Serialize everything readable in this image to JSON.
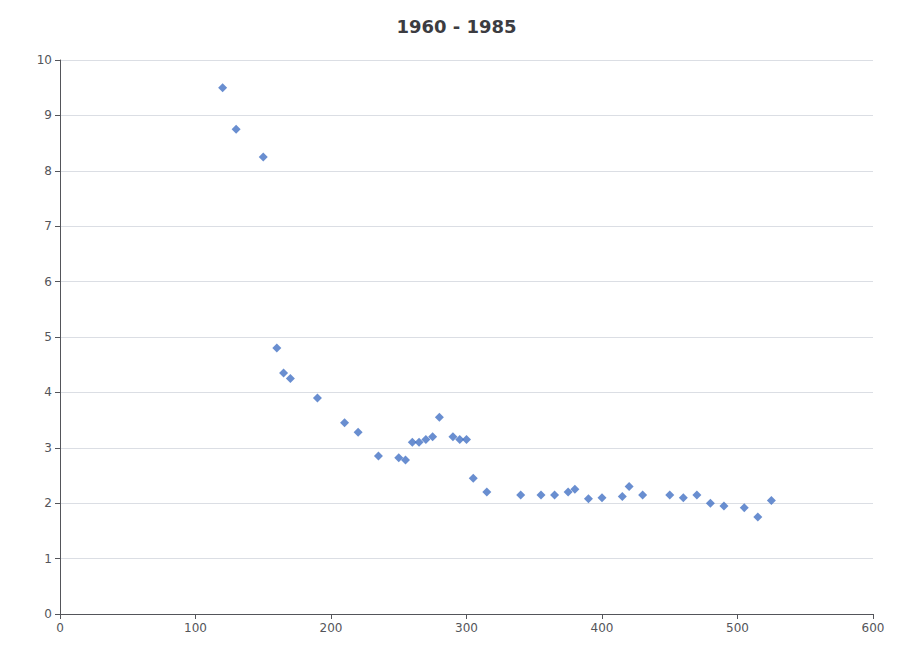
{
  "chart_data": {
    "type": "scatter",
    "title": "1960 - 1985",
    "x": [
      120,
      130,
      150,
      160,
      165,
      170,
      190,
      210,
      220,
      235,
      250,
      255,
      260,
      265,
      270,
      275,
      280,
      290,
      295,
      300,
      305,
      315,
      340,
      355,
      365,
      375,
      380,
      390,
      400,
      415,
      420,
      430,
      450,
      460,
      470,
      480,
      490,
      505,
      515,
      525
    ],
    "values": [
      9.5,
      8.75,
      8.25,
      4.8,
      4.35,
      4.25,
      3.9,
      3.45,
      3.28,
      2.85,
      2.82,
      2.78,
      3.1,
      3.1,
      3.15,
      3.2,
      3.55,
      3.2,
      3.15,
      3.15,
      2.45,
      2.2,
      2.15,
      2.15,
      2.15,
      2.2,
      2.25,
      2.08,
      2.1,
      2.12,
      2.3,
      2.15,
      2.15,
      2.1,
      2.15,
      2.0,
      1.95,
      1.92,
      1.75,
      2.05
    ],
    "color": "#4472C4",
    "marker": "diamond",
    "xlim": [
      0,
      600
    ],
    "ylim": [
      0,
      10
    ],
    "xticks": [
      0,
      100,
      200,
      300,
      400,
      500,
      600
    ],
    "yticks": [
      0,
      1,
      2,
      3,
      4,
      5,
      6,
      7,
      8,
      9,
      10
    ],
    "grid": true
  }
}
